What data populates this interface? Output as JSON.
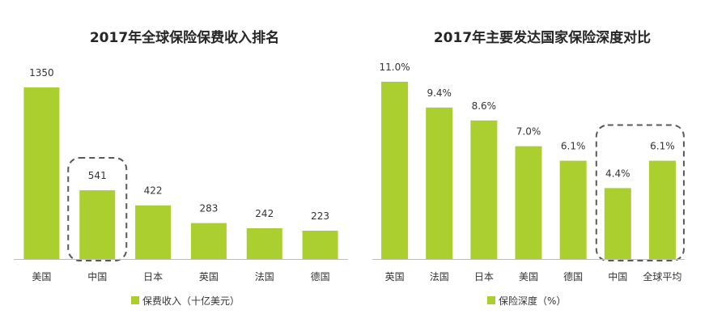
{
  "colors": {
    "bar": "#aacf2e",
    "axis": "#bfbfbf",
    "highlight_border": "#595959"
  },
  "chart_data": [
    {
      "type": "bar",
      "title": "2017年全球保险保费收入排名",
      "categories": [
        "美国",
        "中国",
        "日本",
        "英国",
        "法国",
        "德国"
      ],
      "series": [
        {
          "name": "保费收入（十亿美元）",
          "values": [
            1350,
            541,
            422,
            283,
            242,
            223
          ]
        }
      ],
      "value_labels": [
        "1350",
        "541",
        "422",
        "283",
        "242",
        "223"
      ],
      "highlighted": [
        "中国"
      ],
      "legend": "bottom-center",
      "grid": false,
      "ylim": [
        0,
        1350
      ]
    },
    {
      "type": "bar",
      "title": "2017年主要发达国家保险深度对比",
      "categories": [
        "英国",
        "法国",
        "日本",
        "美国",
        "德国",
        "中国",
        "全球平均"
      ],
      "series": [
        {
          "name": "保险深度（%）",
          "values": [
            11.0,
            9.4,
            8.6,
            7.0,
            6.1,
            4.4,
            6.1
          ]
        }
      ],
      "value_labels": [
        "11.0%",
        "9.4%",
        "8.6%",
        "7.0%",
        "6.1%",
        "4.4%",
        "6.1%"
      ],
      "highlighted": [
        "中国",
        "全球平均"
      ],
      "legend": "bottom-center",
      "grid": false,
      "ylim": [
        0,
        11.0
      ]
    }
  ]
}
